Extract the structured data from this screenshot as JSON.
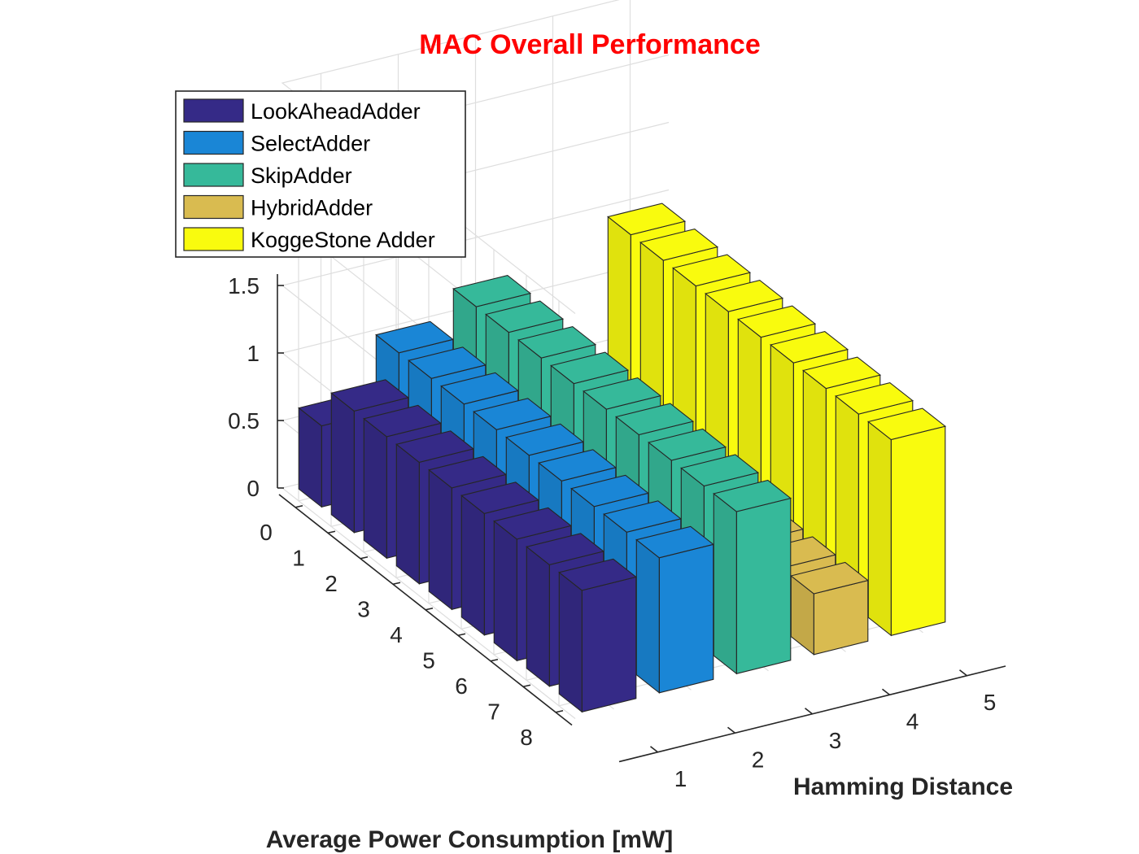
{
  "chart_data": {
    "type": "bar3d",
    "title": "MAC Overall Performance",
    "title_color": "#ff0000",
    "xlabel": "Hamming Distance",
    "ylabel": "Average Power Consumption [mW]",
    "zlabel": "",
    "x_ticks": [
      "1",
      "2",
      "3",
      "4",
      "5"
    ],
    "y_ticks": [
      "0",
      "1",
      "2",
      "3",
      "4",
      "5",
      "6",
      "7",
      "8"
    ],
    "z_ticks": [
      "0",
      "0.5",
      "1",
      "1.5"
    ],
    "zlim": [
      0,
      3
    ],
    "grid": true,
    "legend_position": "top-left",
    "series": [
      {
        "name": "LookAheadAdder",
        "color": "#352a87",
        "values": [
          0.6,
          0.9,
          0.9,
          0.9,
          0.9,
          0.9,
          0.9,
          0.9,
          0.9
        ]
      },
      {
        "name": "SelectAdder",
        "color": "#1a86d6",
        "values": [
          1.0,
          1.0,
          1.0,
          1.0,
          1.0,
          1.0,
          1.0,
          1.0,
          1.0
        ]
      },
      {
        "name": "SkipAdder",
        "color": "#36b99a",
        "values": [
          1.2,
          1.2,
          1.2,
          1.2,
          1.2,
          1.2,
          1.2,
          1.2,
          1.2
        ]
      },
      {
        "name": "HybridAdder",
        "color": "#d9bb50",
        "values": [
          0.45,
          0.45,
          0.45,
          0.45,
          0.45,
          0.45,
          0.45,
          0.45,
          0.45
        ]
      },
      {
        "name": "KoggeStone Adder",
        "color": "#f9fb0e",
        "values": [
          1.45,
          1.45,
          1.45,
          1.45,
          1.45,
          1.45,
          1.45,
          1.45,
          1.45
        ]
      }
    ]
  }
}
